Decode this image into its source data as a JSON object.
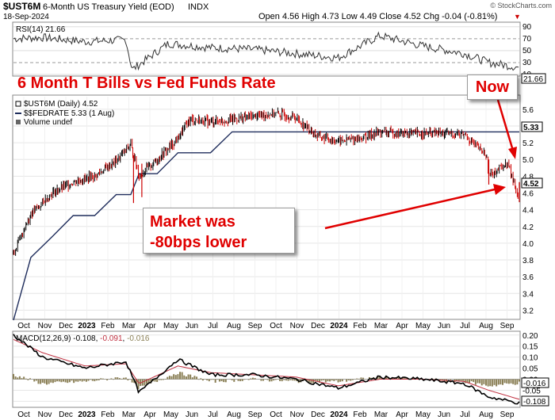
{
  "header": {
    "symbol": "$UST6M",
    "name": "6-Month US Treasury Yield (EOD)",
    "exchange": "INDX",
    "date": "18-Sep-2024",
    "ohlc": "Open 4.56  High 4.73  Low 4.49  Close 4.52  Chg -0.04 (-0.81%)",
    "down_marker": "▼",
    "credit": "© StockCharts.com"
  },
  "rsi_panel": {
    "label": "RSI(14) 21.66",
    "ticks": [
      "90",
      "70",
      "50",
      "30",
      "10"
    ],
    "current": "21.66"
  },
  "main_panel": {
    "legend": [
      {
        "text": "$UST6M (Daily) 4.52",
        "color": "#000000"
      },
      {
        "text": "$$FEDRATE 5.33 (1 Aug)",
        "color": "#1f2d5c"
      },
      {
        "text": "Volume undef",
        "color": "#000000"
      }
    ],
    "ticks": [
      "5.6",
      "5.4",
      "5.2",
      "5.0",
      "4.8",
      "4.6",
      "4.4",
      "4.2",
      "4.0",
      "3.8",
      "3.6",
      "3.4",
      "3.2"
    ],
    "badge_fed": "5.33",
    "badge_last": "4.52"
  },
  "annotations": {
    "title": "6 Month T Bills vs Fed Funds Rate",
    "now": "Now",
    "market_line1": "Market was",
    "market_line2": "-80bps lower"
  },
  "macd_panel": {
    "label_main": "MACD(12,26,9) -0.108, ",
    "label_signal": "-0.091",
    "label_sep": ", ",
    "label_hist": "-0.016",
    "ticks": [
      "0.20",
      "0.15",
      "0.10",
      "0.05",
      "0.00",
      "-0.05",
      "-0.10"
    ],
    "badge_signal": "-0.016",
    "badge_macd": "-0.108"
  },
  "x_axis": [
    "Oct",
    "Nov",
    "Dec",
    "2023",
    "Feb",
    "Mar",
    "Apr",
    "May",
    "Jun",
    "Jul",
    "Aug",
    "Sep",
    "Oct",
    "Nov",
    "Dec",
    "2024",
    "Feb",
    "Mar",
    "Apr",
    "May",
    "Jun",
    "Jul",
    "Aug",
    "Sep"
  ],
  "colors": {
    "price_up": "#000000",
    "price_down": "#cc0000",
    "fedrate": "#1f2d5c",
    "annotation": "#e00000",
    "macd": "#000000",
    "signal": "#c03040",
    "histogram": "#8a7f55"
  },
  "chart_data": [
    {
      "type": "line",
      "title": "$UST6M (Daily) 4.52",
      "x": [
        "2022-09-20",
        "2022-10-15",
        "2022-11-15",
        "2022-12-15",
        "2023-01-15",
        "2023-02-15",
        "2023-03-08",
        "2023-03-20",
        "2023-04-15",
        "2023-05-15",
        "2023-06-01",
        "2023-07-01",
        "2023-08-01",
        "2023-09-01",
        "2023-10-01",
        "2023-11-01",
        "2023-12-01",
        "2024-01-01",
        "2024-02-01",
        "2024-03-01",
        "2024-04-01",
        "2024-05-01",
        "2024-06-01",
        "2024-07-01",
        "2024-07-15",
        "2024-08-01",
        "2024-08-05",
        "2024-09-01",
        "2024-09-18"
      ],
      "series": [
        {
          "name": "$UST6M",
          "values": [
            3.88,
            4.35,
            4.6,
            4.73,
            4.8,
            4.98,
            5.18,
            4.8,
            5.0,
            5.25,
            5.48,
            5.45,
            5.48,
            5.52,
            5.55,
            5.5,
            5.28,
            5.22,
            5.25,
            5.33,
            5.31,
            5.31,
            5.31,
            5.3,
            5.18,
            5.05,
            4.82,
            4.95,
            4.52
          ]
        },
        {
          "name": "$$FEDRATE",
          "values": [
            3.08,
            3.83,
            4.08,
            4.33,
            4.33,
            4.58,
            4.58,
            4.83,
            4.83,
            5.08,
            5.08,
            5.08,
            5.33,
            5.33,
            5.33,
            5.33,
            5.33,
            5.33,
            5.33,
            5.33,
            5.33,
            5.33,
            5.33,
            5.33,
            5.33,
            5.33,
            5.33,
            5.33,
            5.33
          ]
        }
      ],
      "ylim": [
        3.1,
        5.75
      ]
    },
    {
      "type": "line",
      "title": "RSI(14) 21.66",
      "x": [
        "2022-09-20",
        "2022-11-01",
        "2023-01-01",
        "2023-03-01",
        "2023-03-10",
        "2023-05-01",
        "2023-07-01",
        "2023-09-01",
        "2023-11-01",
        "2024-01-01",
        "2024-03-01",
        "2024-05-01",
        "2024-07-01",
        "2024-08-05",
        "2024-09-18"
      ],
      "series": [
        {
          "name": "RSI(14)",
          "values": [
            70,
            72,
            65,
            68,
            18,
            62,
            55,
            52,
            45,
            38,
            75,
            58,
            45,
            30,
            21.66
          ]
        }
      ],
      "ylim": [
        10,
        95
      ]
    },
    {
      "type": "line",
      "title": "MACD(12,26,9)",
      "x": [
        "2022-09-20",
        "2022-11-01",
        "2023-01-01",
        "2023-03-01",
        "2023-03-20",
        "2023-05-15",
        "2023-07-01",
        "2023-09-01",
        "2023-11-01",
        "2024-01-01",
        "2024-03-01",
        "2024-05-01",
        "2024-07-01",
        "2024-08-05",
        "2024-09-18"
      ],
      "series": [
        {
          "name": "MACD",
          "values": [
            0.2,
            0.1,
            0.05,
            0.08,
            -0.06,
            0.09,
            0.02,
            0.02,
            0.0,
            -0.04,
            0.01,
            0.0,
            -0.02,
            -0.08,
            -0.108
          ]
        },
        {
          "name": "Signal",
          "values": [
            0.18,
            0.12,
            0.06,
            0.07,
            -0.02,
            0.06,
            0.03,
            0.02,
            0.01,
            -0.03,
            0.0,
            0.0,
            -0.01,
            -0.05,
            -0.091
          ]
        }
      ],
      "ylim": [
        -0.12,
        0.21
      ]
    }
  ]
}
